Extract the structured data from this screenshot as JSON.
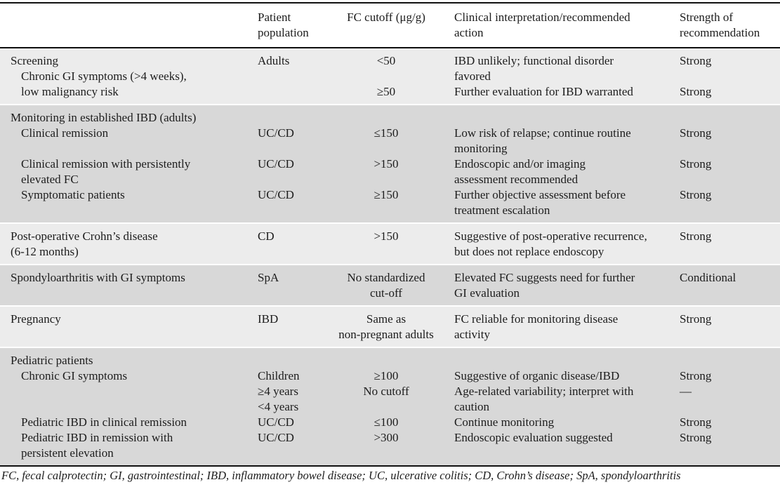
{
  "header": {
    "lines": [
      [
        0,
        "",
        "Patient",
        "FC cutoff (μg/g)",
        "Clinical interpretation/recommended",
        "Strength of"
      ],
      [
        0,
        "",
        "population",
        "",
        "action",
        "recommendation"
      ]
    ]
  },
  "sections": [
    {
      "shade": "light",
      "name": "screening",
      "rows": [
        [
          0,
          "Screening",
          "Adults",
          "<50",
          "IBD unlikely; functional disorder",
          "Strong"
        ],
        [
          1,
          "Chronic GI symptoms (>4 weeks),",
          "",
          "",
          "favored",
          ""
        ],
        [
          1,
          "low malignancy risk",
          "",
          "≥50",
          "Further evaluation for IBD warranted",
          "Strong"
        ]
      ]
    },
    {
      "shade": "dark",
      "name": "monitoring-established-ibd",
      "rows": [
        [
          0,
          "Monitoring in established IBD (adults)",
          "",
          "",
          "",
          ""
        ],
        [
          1,
          "Clinical remission",
          "UC/CD",
          "≤150",
          "Low risk of relapse; continue routine",
          "Strong"
        ],
        [
          1,
          "",
          "",
          "",
          "monitoring",
          ""
        ],
        [
          1,
          "Clinical remission with persistently",
          "UC/CD",
          ">150",
          "Endoscopic and/or imaging",
          "Strong"
        ],
        [
          1,
          "elevated FC",
          "",
          "",
          "assessment recommended",
          ""
        ],
        [
          1,
          "Symptomatic patients",
          "UC/CD",
          "≥150",
          "Further objective assessment before",
          "Strong"
        ],
        [
          1,
          "",
          "",
          "",
          "treatment escalation",
          ""
        ]
      ]
    },
    {
      "shade": "light",
      "name": "post-operative-crohns",
      "rows": [
        [
          0,
          "Post-operative Crohn’s disease",
          "CD",
          ">150",
          "Suggestive of post-operative recurrence,",
          "Strong"
        ],
        [
          0,
          "(6-12 months)",
          "",
          "",
          "but does not replace endoscopy",
          ""
        ]
      ]
    },
    {
      "shade": "dark",
      "name": "spondyloarthritis",
      "rows": [
        [
          0,
          "Spondyloarthritis with GI symptoms",
          "SpA",
          "No standardized",
          "Elevated FC suggests need for further",
          "Conditional"
        ],
        [
          0,
          "",
          "",
          "cut-off",
          "GI evaluation",
          ""
        ]
      ]
    },
    {
      "shade": "light",
      "name": "pregnancy",
      "rows": [
        [
          0,
          "Pregnancy",
          "IBD",
          "Same as",
          "FC reliable for monitoring disease",
          "Strong"
        ],
        [
          0,
          "",
          "",
          "non-pregnant adults",
          "activity",
          ""
        ]
      ]
    },
    {
      "shade": "dark",
      "name": "pediatric",
      "rows": [
        [
          0,
          "Pediatric patients",
          "",
          "",
          "",
          ""
        ],
        [
          1,
          "Chronic GI symptoms",
          "Children",
          "≥100",
          "Suggestive of organic disease/IBD",
          "Strong"
        ],
        [
          1,
          "",
          "≥4 years",
          "No cutoff",
          "Age-related variability; interpret with",
          "—"
        ],
        [
          1,
          "",
          "<4 years",
          "",
          "caution",
          ""
        ],
        [
          1,
          "Pediatric IBD in clinical remission",
          "UC/CD",
          "≤100",
          "Continue monitoring",
          "Strong"
        ],
        [
          1,
          "Pediatric IBD in remission with",
          "UC/CD",
          ">300",
          "Endoscopic evaluation suggested",
          "Strong"
        ],
        [
          1,
          "persistent elevation",
          "",
          "",
          "",
          ""
        ]
      ]
    }
  ],
  "footnote": "FC, fecal calprotectin; GI, gastrointestinal; IBD, inflammatory bowel disease; UC, ulcerative colitis; CD, Crohn’s disease; SpA, spondyloarthritis",
  "colors": {
    "light_row": "#ececec",
    "dark_row": "#d8d8d8",
    "rule": "#111111",
    "text": "#1d1d1d"
  }
}
